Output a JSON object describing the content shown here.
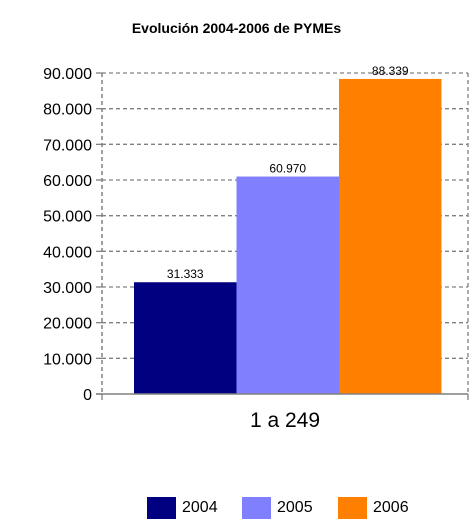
{
  "chart_data": {
    "type": "bar",
    "title": "Evolución 2004-2006 de PYMEs",
    "xlabel": "",
    "ylabel": "",
    "categories": [
      "1 a 249"
    ],
    "series": [
      {
        "name": "2004",
        "values": [
          31333
        ],
        "label": "31.333",
        "color": "#000080"
      },
      {
        "name": "2005",
        "values": [
          60970
        ],
        "label": "60.970",
        "color": "#8080ff"
      },
      {
        "name": "2006",
        "values": [
          88339
        ],
        "label": "88.339",
        "color": "#ff8000"
      }
    ],
    "ylim": [
      0,
      90000
    ],
    "y_ticks": [
      {
        "value": 0,
        "label": "0"
      },
      {
        "value": 10000,
        "label": "10.000"
      },
      {
        "value": 20000,
        "label": "20.000"
      },
      {
        "value": 30000,
        "label": "30.000"
      },
      {
        "value": 40000,
        "label": "40.000"
      },
      {
        "value": 50000,
        "label": "50.000"
      },
      {
        "value": 60000,
        "label": "60.000"
      },
      {
        "value": 70000,
        "label": "70.000"
      },
      {
        "value": 80000,
        "label": "80.000"
      },
      {
        "value": 90000,
        "label": "90.000"
      }
    ],
    "grid": true,
    "legend_position": "bottom"
  }
}
